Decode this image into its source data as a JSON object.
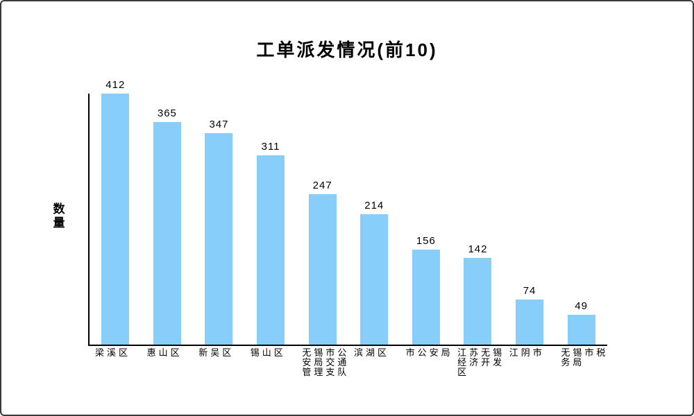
{
  "chart_data": {
    "type": "bar",
    "title": "工单派发情况(前10)",
    "xlabel": "",
    "ylabel": "数量",
    "categories": [
      "梁溪区",
      "惠山区",
      "新吴区",
      "锡山区",
      "无锡市公安局交通管理支队",
      "滨湖区",
      "市公安局",
      "江苏无锡经济开发区",
      "江阴市",
      "无锡市税务局"
    ],
    "values": [
      412,
      365,
      347,
      311,
      247,
      214,
      156,
      142,
      74,
      49
    ],
    "ylim": [
      0,
      414
    ],
    "grid": false,
    "legend": false,
    "bar_color": "#87CEFA",
    "axis_color": "#000000",
    "text_color": "#000000",
    "background_color": "#ffffff"
  }
}
